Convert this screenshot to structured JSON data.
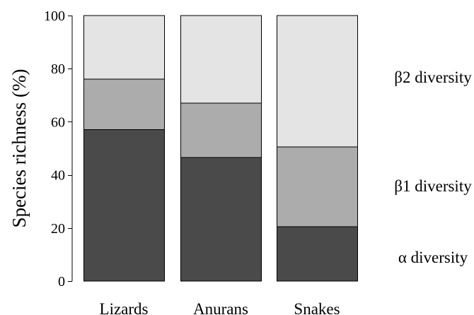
{
  "chart_data": {
    "type": "bar",
    "stacked": true,
    "ylabel": "Species richness (%)",
    "ylim": [
      0,
      100
    ],
    "yticks": [
      0,
      20,
      40,
      60,
      80,
      100
    ],
    "categories": [
      "Lizards",
      "Anurans",
      "Snakes"
    ],
    "series": [
      {
        "name": "α diversity",
        "values": [
          57,
          46.5,
          20.5
        ],
        "color": "#4a4a4a"
      },
      {
        "name": "β1 diversity",
        "values": [
          19,
          20.5,
          30
        ],
        "color": "#acacac"
      },
      {
        "name": "β2 diversity",
        "values": [
          24,
          33,
          49.5
        ],
        "color": "#e4e4e4"
      }
    ],
    "legend_placement": "right"
  }
}
